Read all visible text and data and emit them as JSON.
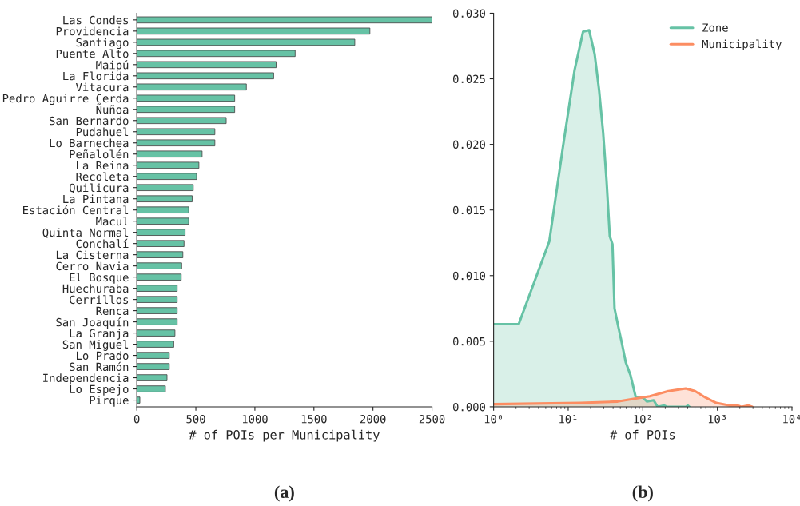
{
  "chart_data": [
    {
      "type": "bar",
      "orientation": "horizontal",
      "xlabel": "# of POIs per Municipality",
      "color": "#66c2a5",
      "categories": [
        "Las Condes",
        "Providencia",
        "Santiago",
        "Puente Alto",
        "Maipú",
        "La Florida",
        "Vitacura",
        "Pedro Aguirre Cerda",
        "Ñuñoa",
        "San Bernardo",
        "Pudahuel",
        "Lo Barnechea",
        "Peñalolén",
        "La Reina",
        "Recoleta",
        "Quilicura",
        "La Pintana",
        "Estación Central",
        "Macul",
        "Quinta Normal",
        "Conchalí",
        "La Cisterna",
        "Cerro Navia",
        "El Bosque",
        "Huechuraba",
        "Cerrillos",
        "Renca",
        "San Joaquín",
        "La Granja",
        "San Miguel",
        "Lo Prado",
        "San Ramón",
        "Independencia",
        "Lo Espejo",
        "Pirque"
      ],
      "values": [
        2500,
        1974,
        1846,
        1341,
        1180,
        1159,
        928,
        829,
        829,
        757,
        661,
        661,
        553,
        526,
        507,
        478,
        469,
        440,
        440,
        409,
        400,
        390,
        380,
        376,
        342,
        342,
        342,
        342,
        323,
        313,
        275,
        275,
        256,
        242,
        26
      ],
      "xlim": [
        0,
        2500
      ],
      "xticks": [
        0,
        500,
        1000,
        1500,
        2000,
        2500
      ],
      "grid": false,
      "annotations": [
        "(a)"
      ]
    },
    {
      "type": "area",
      "xlabel": "# of POIs",
      "log": "x",
      "legend": "top right",
      "grid": false,
      "xlim": [
        1,
        10000
      ],
      "xticks": [
        {
          "value": 1,
          "label": "10⁰"
        },
        {
          "value": 10,
          "label": "10¹"
        },
        {
          "value": 100,
          "label": "10²"
        },
        {
          "value": 1000,
          "label": "10³"
        },
        {
          "value": 10000,
          "label": "10⁴"
        }
      ],
      "ylim": [
        0,
        0.03
      ],
      "yticks": [
        {
          "value": 0,
          "label": "0.000"
        },
        {
          "value": 0.005,
          "label": "0.005"
        },
        {
          "value": 0.01,
          "label": "0.010"
        },
        {
          "value": 0.015,
          "label": "0.015"
        },
        {
          "value": 0.02,
          "label": "0.020"
        },
        {
          "value": 0.025,
          "label": "0.025"
        },
        {
          "value": 0.03,
          "label": "0.030"
        }
      ],
      "series": [
        {
          "name": "Zone",
          "color": "#66c2a5",
          "x": [
            1,
            2.17,
            5.58,
            8.55,
            12.2,
            15.85,
            19.1,
            22.6,
            26.0,
            29.4,
            32.7,
            36.1,
            39.2,
            41.8,
            46.2,
            52.2,
            59.1,
            68.5,
            80.7,
            100,
            114,
            140,
            158,
            194,
            210,
            380,
            402,
            420
          ],
          "values": [
            0.0063,
            0.0063,
            0.0126,
            0.0199,
            0.0257,
            0.0286,
            0.0287,
            0.0269,
            0.0241,
            0.0209,
            0.0172,
            0.013,
            0.0124,
            0.0075,
            0.0063,
            0.0049,
            0.0034,
            0.0024,
            0.0007,
            0.0007,
            0.0004,
            0.0005,
            0.0,
            0.0001,
            0.0,
            0.0,
            0.0001,
            0.0
          ]
        },
        {
          "name": "Municipality",
          "color": "#fc8d62",
          "x": [
            1,
            14.6,
            46,
            75,
            124,
            220,
            376,
            501,
            697,
            968,
            1459,
            1862,
            2100,
            2594,
            2938
          ],
          "values": [
            0.0002,
            0.0003,
            0.0004,
            0.0006,
            0.0008,
            0.0012,
            0.0014,
            0.0012,
            0.0007,
            0.0003,
            0.0001,
            0.0001,
            0.0,
            0.0001,
            0.0
          ]
        }
      ],
      "annotations": [
        "(b)"
      ]
    }
  ]
}
